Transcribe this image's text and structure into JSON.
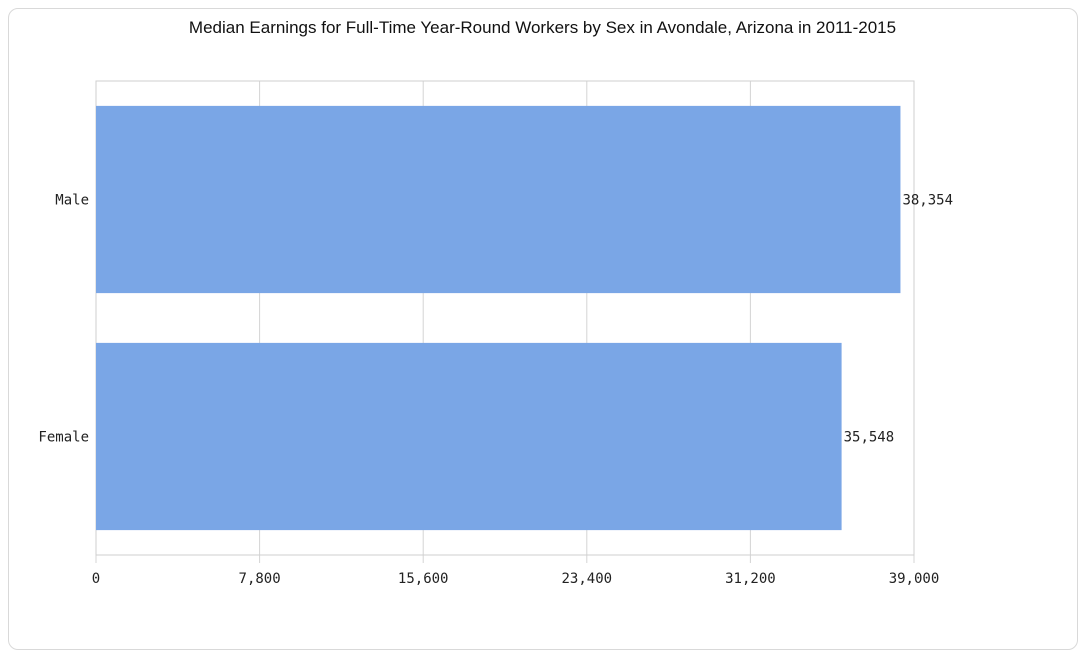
{
  "chart_data": {
    "type": "bar",
    "orientation": "horizontal",
    "title": "Median Earnings for Full-Time Year-Round Workers by Sex in Avondale, Arizona in 2011-2015",
    "categories": [
      "Male",
      "Female"
    ],
    "values": [
      38354,
      35548
    ],
    "value_labels": [
      "38,354",
      "35,548"
    ],
    "xlim": [
      0,
      39000
    ],
    "x_ticks": [
      0,
      7800,
      15600,
      23400,
      31200,
      39000
    ],
    "x_tick_labels": [
      "0",
      "7,800",
      "15,600",
      "23,400",
      "31,200",
      "39,000"
    ],
    "xlabel": "",
    "ylabel": "",
    "grid": true,
    "legend": "none",
    "bar_color": "#7aa6e6",
    "grid_color": "#d4d4d4"
  }
}
